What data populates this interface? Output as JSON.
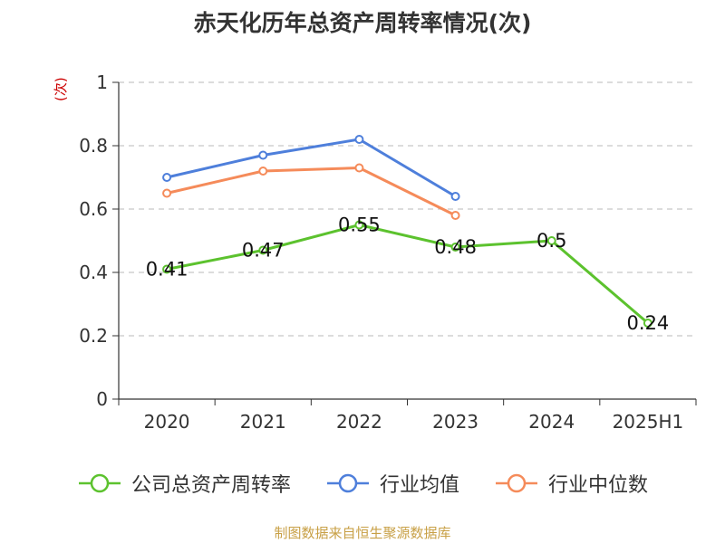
{
  "title": "赤天化历年总资产周转率情况(次)",
  "footer": "制图数据来自恒生聚源数据库",
  "chart_data": {
    "type": "line",
    "title": "赤天化历年总资产周转率情况(次)",
    "ylabel": "(次)",
    "xlabel": "",
    "categories": [
      "2020",
      "2021",
      "2022",
      "2023",
      "2024",
      "2025H1"
    ],
    "ylim": [
      0,
      1
    ],
    "yticks": [
      "0",
      "0.2",
      "0.4",
      "0.6",
      "0.8",
      "1"
    ],
    "grid": true,
    "legend_position": "bottom",
    "series": [
      {
        "name": "公司总资产周转率",
        "color": "#5cc22e",
        "values": [
          0.41,
          0.47,
          0.55,
          0.48,
          0.5,
          0.24
        ],
        "labels": [
          "0.41",
          "0.47",
          "0.55",
          "0.48",
          "0.5",
          "0.24"
        ]
      },
      {
        "name": "行业均值",
        "color": "#4e7fdb",
        "values": [
          0.7,
          0.77,
          0.82,
          0.64,
          null,
          null
        ]
      },
      {
        "name": "行业中位数",
        "color": "#f58b5a",
        "values": [
          0.65,
          0.72,
          0.73,
          0.58,
          null,
          null
        ]
      }
    ]
  }
}
